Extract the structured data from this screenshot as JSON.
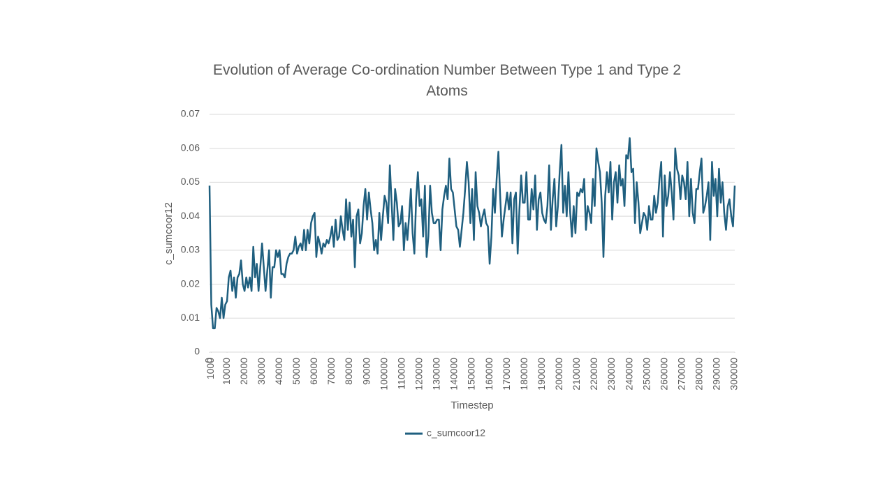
{
  "chart_data": {
    "type": "line",
    "title": "Evolution of Average Co-ordination Number Between Type 1 and Type 2 Atoms",
    "x_label": "Timestep",
    "y_label": "c_sumcoor12",
    "xlim": [
      0,
      300000
    ],
    "xticks": [
      0,
      1000,
      10000,
      20000,
      30000,
      40000,
      50000,
      60000,
      70000,
      80000,
      90000,
      100000,
      110000,
      120000,
      130000,
      140000,
      150000,
      160000,
      170000,
      180000,
      190000,
      200000,
      210000,
      220000,
      230000,
      240000,
      250000,
      260000,
      270000,
      280000,
      290000,
      300000
    ],
    "ylim": [
      0,
      0.07
    ],
    "yticks": [
      0,
      0.01,
      0.02,
      0.03,
      0.04,
      0.05,
      0.06,
      0.07
    ],
    "grid": true,
    "legend": "bottom",
    "x": [
      0,
      1000,
      2000,
      3000,
      4000,
      5000,
      6000,
      7000,
      8000,
      9000,
      10000,
      11000,
      12000,
      13000,
      14000,
      15000,
      16000,
      17000,
      18000,
      19000,
      20000,
      21000,
      22000,
      23000,
      24000,
      25000,
      26000,
      27000,
      28000,
      29000,
      30000,
      31000,
      32000,
      33000,
      34000,
      35000,
      36000,
      37000,
      38000,
      39000,
      40000,
      41000,
      42000,
      43000,
      44000,
      45000,
      46000,
      47000,
      48000,
      49000,
      50000,
      51000,
      52000,
      53000,
      54000,
      55000,
      56000,
      57000,
      58000,
      59000,
      60000,
      61000,
      62000,
      63000,
      64000,
      65000,
      66000,
      67000,
      68000,
      69000,
      70000,
      71000,
      72000,
      73000,
      74000,
      75000,
      76000,
      77000,
      78000,
      79000,
      80000,
      81000,
      82000,
      83000,
      84000,
      85000,
      86000,
      87000,
      88000,
      89000,
      90000,
      91000,
      92000,
      93000,
      94000,
      95000,
      96000,
      97000,
      98000,
      99000,
      100000,
      101000,
      102000,
      103000,
      104000,
      105000,
      106000,
      107000,
      108000,
      109000,
      110000,
      111000,
      112000,
      113000,
      114000,
      115000,
      116000,
      117000,
      118000,
      119000,
      120000,
      121000,
      122000,
      123000,
      124000,
      125000,
      126000,
      127000,
      128000,
      129000,
      130000,
      131000,
      132000,
      133000,
      134000,
      135000,
      136000,
      137000,
      138000,
      139000,
      140000,
      141000,
      142000,
      143000,
      144000,
      145000,
      146000,
      147000,
      148000,
      149000,
      150000,
      151000,
      152000,
      153000,
      154000,
      155000,
      156000,
      157000,
      158000,
      159000,
      160000,
      161000,
      162000,
      163000,
      164000,
      165000,
      166000,
      167000,
      168000,
      169000,
      170000,
      171000,
      172000,
      173000,
      174000,
      175000,
      176000,
      177000,
      178000,
      179000,
      180000,
      181000,
      182000,
      183000,
      184000,
      185000,
      186000,
      187000,
      188000,
      189000,
      190000,
      191000,
      192000,
      193000,
      194000,
      195000,
      196000,
      197000,
      198000,
      199000,
      200000,
      201000,
      202000,
      203000,
      204000,
      205000,
      206000,
      207000,
      208000,
      209000,
      210000,
      211000,
      212000,
      213000,
      214000,
      215000,
      216000,
      217000,
      218000,
      219000,
      220000,
      221000,
      222000,
      223000,
      224000,
      225000,
      226000,
      227000,
      228000,
      229000,
      230000,
      231000,
      232000,
      233000,
      234000,
      235000,
      236000,
      237000,
      238000,
      239000,
      240000,
      241000,
      242000,
      243000,
      244000,
      245000,
      246000,
      247000,
      248000,
      249000,
      250000,
      251000,
      252000,
      253000,
      254000,
      255000,
      256000,
      257000,
      258000,
      259000,
      260000,
      261000,
      262000,
      263000,
      264000,
      265000,
      266000,
      267000,
      268000,
      269000,
      270000,
      271000,
      272000,
      273000,
      274000,
      275000,
      276000,
      277000,
      278000,
      279000,
      280000,
      281000,
      282000,
      283000,
      284000,
      285000,
      286000,
      287000,
      288000,
      289000,
      290000,
      291000,
      292000,
      293000,
      294000,
      295000,
      296000,
      297000,
      298000,
      299000,
      300000
    ],
    "series": [
      {
        "name": "c_sumcoor12",
        "color": "#1f5f7f",
        "values": [
          0.049,
          0.014,
          0.007,
          0.007,
          0.013,
          0.012,
          0.01,
          0.016,
          0.01,
          0.014,
          0.015,
          0.022,
          0.024,
          0.018,
          0.022,
          0.016,
          0.022,
          0.023,
          0.027,
          0.02,
          0.018,
          0.022,
          0.019,
          0.022,
          0.018,
          0.031,
          0.022,
          0.026,
          0.018,
          0.025,
          0.032,
          0.025,
          0.018,
          0.024,
          0.03,
          0.016,
          0.025,
          0.025,
          0.03,
          0.028,
          0.03,
          0.023,
          0.023,
          0.022,
          0.026,
          0.028,
          0.029,
          0.029,
          0.03,
          0.034,
          0.029,
          0.031,
          0.032,
          0.03,
          0.036,
          0.03,
          0.036,
          0.032,
          0.038,
          0.04,
          0.041,
          0.028,
          0.034,
          0.032,
          0.029,
          0.032,
          0.031,
          0.033,
          0.032,
          0.034,
          0.037,
          0.031,
          0.039,
          0.033,
          0.034,
          0.04,
          0.036,
          0.033,
          0.045,
          0.036,
          0.044,
          0.034,
          0.039,
          0.025,
          0.04,
          0.042,
          0.032,
          0.035,
          0.043,
          0.048,
          0.039,
          0.047,
          0.042,
          0.038,
          0.03,
          0.033,
          0.029,
          0.041,
          0.033,
          0.04,
          0.046,
          0.044,
          0.038,
          0.055,
          0.044,
          0.033,
          0.048,
          0.044,
          0.037,
          0.038,
          0.043,
          0.03,
          0.038,
          0.033,
          0.04,
          0.048,
          0.035,
          0.029,
          0.045,
          0.053,
          0.043,
          0.045,
          0.034,
          0.049,
          0.028,
          0.034,
          0.049,
          0.041,
          0.038,
          0.038,
          0.039,
          0.039,
          0.03,
          0.042,
          0.046,
          0.049,
          0.045,
          0.057,
          0.048,
          0.047,
          0.042,
          0.037,
          0.036,
          0.031,
          0.036,
          0.041,
          0.048,
          0.056,
          0.05,
          0.038,
          0.048,
          0.033,
          0.053,
          0.043,
          0.041,
          0.037,
          0.04,
          0.042,
          0.038,
          0.037,
          0.026,
          0.034,
          0.048,
          0.041,
          0.051,
          0.059,
          0.046,
          0.034,
          0.039,
          0.043,
          0.047,
          0.042,
          0.047,
          0.032,
          0.045,
          0.047,
          0.029,
          0.042,
          0.052,
          0.044,
          0.044,
          0.053,
          0.039,
          0.039,
          0.048,
          0.042,
          0.052,
          0.036,
          0.045,
          0.047,
          0.041,
          0.039,
          0.038,
          0.043,
          0.055,
          0.036,
          0.045,
          0.051,
          0.037,
          0.043,
          0.053,
          0.061,
          0.041,
          0.049,
          0.04,
          0.053,
          0.041,
          0.034,
          0.043,
          0.035,
          0.047,
          0.046,
          0.048,
          0.047,
          0.051,
          0.036,
          0.043,
          0.041,
          0.038,
          0.051,
          0.043,
          0.06,
          0.056,
          0.053,
          0.044,
          0.028,
          0.046,
          0.053,
          0.047,
          0.056,
          0.039,
          0.05,
          0.053,
          0.044,
          0.055,
          0.049,
          0.051,
          0.043,
          0.058,
          0.057,
          0.063,
          0.053,
          0.054,
          0.038,
          0.05,
          0.044,
          0.035,
          0.038,
          0.041,
          0.04,
          0.036,
          0.043,
          0.039,
          0.039,
          0.046,
          0.041,
          0.044,
          0.051,
          0.056,
          0.034,
          0.052,
          0.043,
          0.046,
          0.053,
          0.047,
          0.039,
          0.06,
          0.054,
          0.052,
          0.045,
          0.052,
          0.05,
          0.045,
          0.056,
          0.04,
          0.051,
          0.041,
          0.038,
          0.048,
          0.048,
          0.053,
          0.057,
          0.041,
          0.043,
          0.046,
          0.05,
          0.033,
          0.056,
          0.046,
          0.051,
          0.04,
          0.054,
          0.044,
          0.05,
          0.041,
          0.036,
          0.043,
          0.045,
          0.04,
          0.037,
          0.049
        ]
      }
    ]
  }
}
